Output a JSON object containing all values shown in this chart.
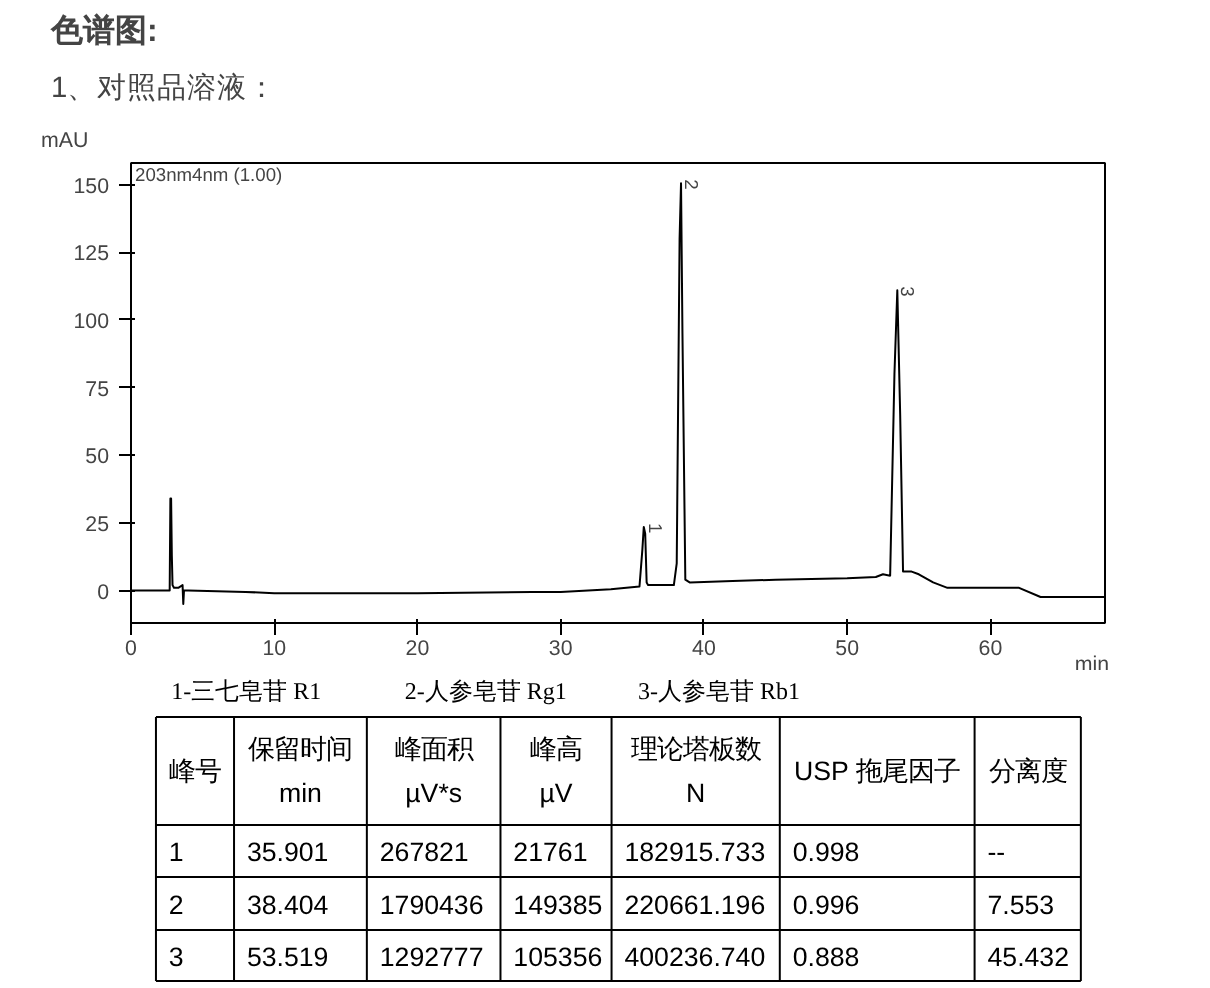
{
  "chart_data": [
    {
      "type": "line",
      "title": "色谱图:",
      "subtitle": "1、对照品溶液：",
      "ylabel": "mAU",
      "xlabel": "min",
      "x": [
        0,
        2.7,
        2.75,
        2.8,
        2.85,
        2.9,
        3.0,
        3.3,
        3.6,
        3.65,
        3.7,
        3.75,
        4,
        8,
        10,
        20,
        28,
        30,
        33.5,
        35.5,
        35.7,
        35.8,
        35.9,
        36.0,
        36.1,
        36.4,
        37.9,
        38.1,
        38.3,
        38.4,
        38.5,
        38.7,
        39,
        42,
        45,
        50,
        52,
        52.5,
        53,
        53.3,
        53.5,
        53.7,
        53.9,
        54.5,
        55,
        56,
        57,
        60,
        62,
        63.5,
        68
      ],
      "series": [
        {
          "color": "#000000",
          "values": [
            0,
            0,
            34,
            34,
            13,
            2,
            1,
            1,
            2,
            -5,
            0,
            0,
            0,
            -0.5,
            -1,
            -1,
            -0.5,
            -0.5,
            0.5,
            1.5,
            15,
            23.5,
            21,
            3,
            2,
            2,
            2,
            10,
            130,
            150.5,
            95,
            4,
            3,
            3.5,
            4,
            4.5,
            5,
            6,
            5.5,
            80,
            111,
            65,
            7,
            7,
            6,
            3,
            1,
            1,
            1,
            -2.4,
            -2.4
          ]
        }
      ],
      "annotations": [
        "203nm4nm (1.00)",
        {
          "text": "1",
          "x": 35.9,
          "y": 23.5
        },
        {
          "text": "2",
          "x": 38.4,
          "y": 150.5
        },
        {
          "text": "3",
          "x": 53.5,
          "y": 111
        }
      ],
      "xlim": [
        0,
        68
      ],
      "ylim": [
        -12,
        158
      ],
      "xticks": [
        0,
        10,
        20,
        30,
        40,
        50,
        60
      ],
      "yticks": [
        0,
        25,
        50,
        75,
        100,
        125,
        150
      ],
      "grid": false,
      "marker": "none",
      "line_style": "solid"
    },
    {
      "type": "other",
      "annotations": [
        "1-三七皂苷 R1",
        "2-人参皂苷 Rg1",
        "3-人参皂苷 Rb1"
      ],
      "categories": [
        "峰号",
        "保留时间\nmin",
        "峰面积\nµV*s",
        "峰高\nµV",
        "理论塔板数\nN",
        "USP 拖尾因子",
        "分离度"
      ],
      "cell_labels": [
        [
          "1",
          "35.901",
          "267821",
          "21761",
          "182915.733",
          "0.998",
          "--"
        ],
        [
          "2",
          "38.404",
          "1790436",
          "149385",
          "220661.196",
          "0.996",
          "7.553"
        ],
        [
          "3",
          "53.519",
          "1292777",
          "105356",
          "400236.740",
          "0.888",
          "45.432"
        ]
      ]
    }
  ]
}
